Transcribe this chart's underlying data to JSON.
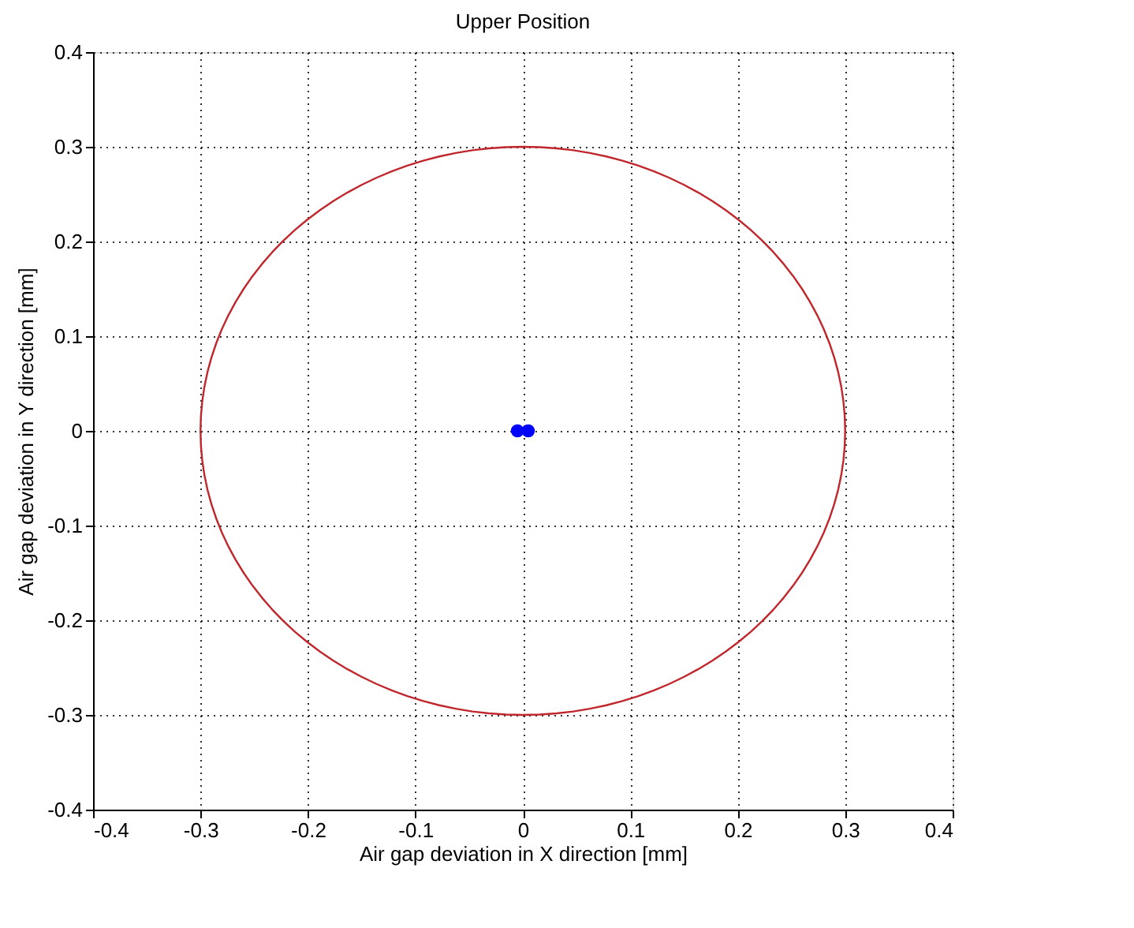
{
  "chart_data": {
    "type": "scatter",
    "title": "Upper Position",
    "xlabel": "Air gap deviation in X direction [mm]",
    "ylabel": "Air gap deviation in Y direction [mm]",
    "xlim": [
      -0.4,
      0.4
    ],
    "ylim": [
      -0.4,
      0.4
    ],
    "xticks": [
      -0.4,
      -0.3,
      -0.2,
      -0.1,
      0,
      0.1,
      0.2,
      0.3,
      0.4
    ],
    "yticks": [
      -0.4,
      -0.3,
      -0.2,
      -0.1,
      0,
      0.1,
      0.2,
      0.3,
      0.4
    ],
    "grid": true,
    "series": [
      {
        "color": "#0000ff",
        "marker": "circle",
        "x": [
          -0.005,
          0.005
        ],
        "values": [
          0,
          0
        ]
      }
    ]
  }
}
